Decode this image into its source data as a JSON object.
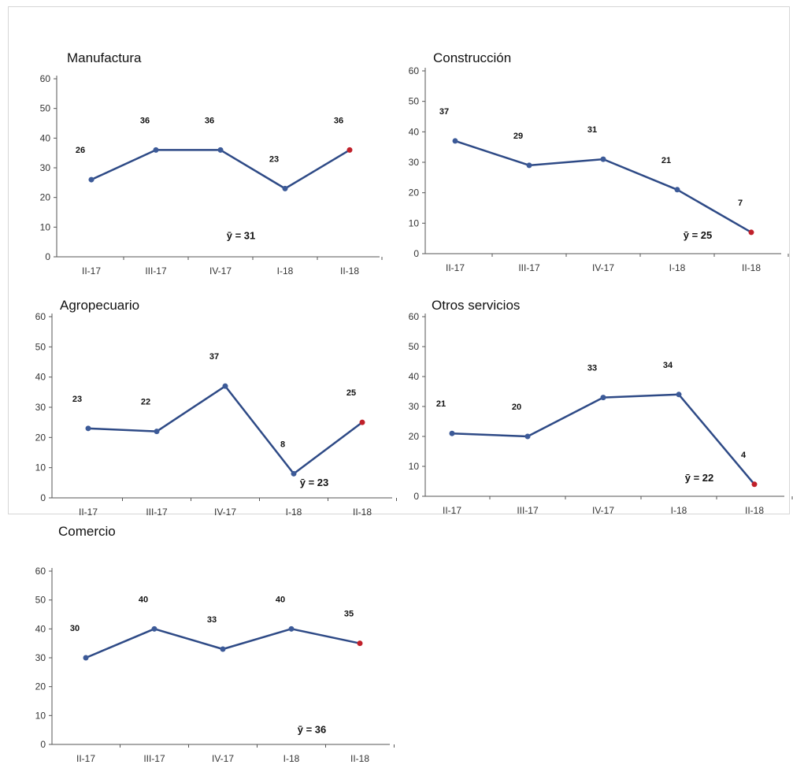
{
  "chart_data": [
    {
      "type": "line",
      "title": "Manufactura",
      "categories": [
        "II-17",
        "III-17",
        "IV-17",
        "I-18",
        "II-18"
      ],
      "values": [
        26,
        36,
        36,
        23,
        36
      ],
      "data_labels": [
        "26",
        "36",
        "36",
        "23",
        "36"
      ],
      "average_label": "ȳ = 31",
      "ylim": [
        0,
        60
      ],
      "yticks": [
        "0",
        "10",
        "20",
        "30",
        "40",
        "50",
        "60"
      ]
    },
    {
      "type": "line",
      "title": "Construcción",
      "categories": [
        "II-17",
        "III-17",
        "IV-17",
        "I-18",
        "II-18"
      ],
      "values": [
        37,
        29,
        31,
        21,
        7
      ],
      "data_labels": [
        "37",
        "29",
        "31",
        "21",
        "7"
      ],
      "average_label": "ȳ = 25",
      "ylim": [
        0,
        60
      ],
      "yticks": [
        "0",
        "10",
        "20",
        "30",
        "40",
        "50",
        "60"
      ]
    },
    {
      "type": "line",
      "title": "Agropecuario",
      "categories": [
        "II-17",
        "III-17",
        "IV-17",
        "I-18",
        "II-18"
      ],
      "values": [
        23,
        22,
        37,
        8,
        25
      ],
      "data_labels": [
        "23",
        "22",
        "37",
        "8",
        "25"
      ],
      "average_label": "ȳ = 23",
      "ylim": [
        0,
        60
      ],
      "yticks": [
        "0",
        "10",
        "20",
        "30",
        "40",
        "50",
        "60"
      ]
    },
    {
      "type": "line",
      "title": "Otros servicios",
      "categories": [
        "II-17",
        "III-17",
        "IV-17",
        "I-18",
        "II-18"
      ],
      "values": [
        21,
        20,
        33,
        34,
        4
      ],
      "data_labels": [
        "21",
        "20",
        "33",
        "34",
        "4"
      ],
      "average_label": "ȳ = 22",
      "ylim": [
        0,
        60
      ],
      "yticks": [
        "0",
        "10",
        "20",
        "30",
        "40",
        "50",
        "60"
      ]
    },
    {
      "type": "line",
      "title": "Comercio",
      "categories": [
        "II-17",
        "III-17",
        "IV-17",
        "I-18",
        "II-18"
      ],
      "values": [
        30,
        40,
        33,
        40,
        35
      ],
      "data_labels": [
        "30",
        "40",
        "33",
        "40",
        "35"
      ],
      "average_label": "ȳ = 36",
      "ylim": [
        0,
        60
      ],
      "yticks": [
        "0",
        "10",
        "20",
        "30",
        "40",
        "50",
        "60"
      ]
    }
  ],
  "colors": {
    "line": "#2e4a86",
    "marker": "#3c5a98",
    "last_marker": "#c0202a",
    "axis": "#555555"
  }
}
